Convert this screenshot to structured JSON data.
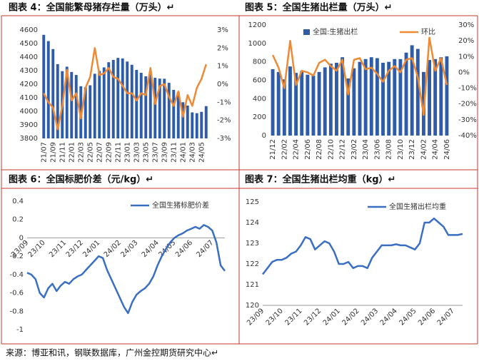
{
  "chart_data": [
    {
      "type": "bar",
      "title": "图表 4：全国能繁母猪存栏量（万头）↵",
      "categories": [
        "21/07",
        null,
        "21/09",
        null,
        "21/11",
        null,
        "22/01",
        null,
        "22/03",
        null,
        "22/05",
        null,
        "22/07",
        null,
        "22/09",
        null,
        "22/11",
        null,
        "23/01",
        null,
        "23/03",
        null,
        "23/05",
        null,
        "23/07",
        null,
        "23/09",
        null,
        "23/11",
        null,
        "24/01",
        null,
        "24/03",
        null,
        "24/05",
        null
      ],
      "series": [
        {
          "type": "bar",
          "color": "#2e5ca8",
          "values": [
            4564,
            4518,
            4459,
            4348,
            4296,
            4329,
            4290,
            4268,
            4185,
            4177,
            4192,
            4277,
            4298,
            4324,
            4362,
            4379,
            4394,
            4390,
            4367,
            4343,
            4305,
            4284,
            4258,
            4296,
            4247,
            4241,
            4240,
            4210,
            4158,
            4142,
            4067,
            4042,
            3992,
            3986,
            3996,
            4038
          ]
        },
        {
          "type": "line",
          "axis": "y2",
          "color": "#ee8a35",
          "values": [
            -0.5,
            -1.0,
            -1.3,
            -2.5,
            -1.2,
            0.8,
            -0.9,
            -0.5,
            -1.9,
            -0.2,
            0.4,
            2,
            0.5,
            0.6,
            0.9,
            0.4,
            0.3,
            -0.1,
            -0.5,
            -0.5,
            -0.9,
            -0.5,
            -0.6,
            0.9,
            -1.1,
            -0.1,
            0,
            -0.7,
            -1.2,
            -0.4,
            -1.8,
            -0.6,
            -1.2,
            -0.2,
            0.3,
            1.1
          ]
        }
      ],
      "ylim": [
        3800,
        4600
      ],
      "yticks": [
        3800,
        3900,
        4000,
        4100,
        4200,
        4300,
        4400,
        4500,
        4600
      ],
      "y2lim": [
        -3,
        3
      ],
      "y2ticks": [
        {
          "value": -3,
          "label": "-3%"
        },
        {
          "value": -2,
          "label": "-2%"
        },
        {
          "value": -1,
          "label": "-1%"
        },
        {
          "value": 0,
          "label": "0%"
        },
        {
          "value": 1,
          "label": "1%"
        },
        {
          "value": 2,
          "label": "2%"
        },
        {
          "value": 3,
          "label": "3%"
        }
      ]
    },
    {
      "type": "bar",
      "title": "图表 5：全国生猪出栏量（万头）↵",
      "categories": [
        "21/12",
        null,
        "22/02",
        null,
        "22/04",
        null,
        "22/06",
        null,
        "22/08",
        null,
        "22/10",
        null,
        "22/12",
        null,
        "23/02",
        null,
        "23/04",
        null,
        "23/06",
        null,
        "23/08",
        null,
        "23/10",
        null,
        "23/12",
        null,
        "24/02",
        null,
        "24/04",
        null,
        "24/06"
      ],
      "series": [
        {
          "name": "全国:生猪出栏",
          "type": "bar",
          "color": "#2e5ca8",
          "values": [
            720,
            690,
            610,
            750,
            680,
            700,
            660,
            650,
            690,
            740,
            780,
            790,
            850,
            620,
            730,
            800,
            830,
            850,
            840,
            790,
            800,
            830,
            830,
            900,
            980,
            940,
            690,
            820,
            830,
            850,
            860
          ]
        },
        {
          "name": "环比",
          "type": "line",
          "axis": "y2",
          "color": "#ee8a35",
          "values": [
            11,
            3,
            -10,
            20,
            -8,
            1,
            0,
            -2,
            6,
            8,
            4,
            1,
            8,
            -14,
            8,
            9,
            2,
            3,
            -1,
            -6,
            1,
            4,
            0,
            8,
            9,
            -3,
            -27,
            22,
            1,
            9,
            -8
          ]
        }
      ],
      "ylim": [
        0,
        1200
      ],
      "yticks": [
        0,
        200,
        400,
        600,
        800,
        1000,
        1200
      ],
      "y2lim": [
        -40,
        30
      ],
      "y2ticks": [
        {
          "value": -40,
          "label": "-40%"
        },
        {
          "value": -30,
          "label": "-30%"
        },
        {
          "value": -20,
          "label": "-20%"
        },
        {
          "value": -10,
          "label": "-10%"
        },
        {
          "value": 0,
          "label": "0%"
        },
        {
          "value": 10,
          "label": "10%"
        },
        {
          "value": 20,
          "label": "20%"
        },
        {
          "value": 30,
          "label": "30%"
        }
      ]
    },
    {
      "type": "line",
      "title": "图表 6：全国标肥价差（元/kg）↵",
      "categories": [
        "23/09",
        null,
        null,
        null,
        "23/10",
        null,
        null,
        null,
        null,
        "23/11",
        null,
        null,
        null,
        "23/12",
        null,
        null,
        null,
        "24/01",
        null,
        null,
        null,
        null,
        "24/02",
        null,
        null,
        null,
        "24/03",
        null,
        null,
        null,
        null,
        "24/04",
        null,
        null,
        null,
        "24/05",
        null,
        null,
        null,
        "24/06",
        null,
        null,
        null,
        null,
        "24/07",
        null,
        null,
        null
      ],
      "series": [
        {
          "name": "全国生猪标肥价差",
          "color": "#3a6fc4",
          "values": [
            -0.38,
            -0.4,
            -0.45,
            -0.6,
            -0.65,
            -0.55,
            -0.5,
            -0.58,
            -0.52,
            -0.48,
            -0.5,
            -0.45,
            -0.42,
            -0.4,
            -0.35,
            -0.3,
            -0.25,
            -0.2,
            -0.22,
            -0.35,
            -0.45,
            -0.55,
            -0.65,
            -0.75,
            -0.82,
            -0.7,
            -0.62,
            -0.58,
            -0.55,
            -0.5,
            -0.42,
            -0.3,
            -0.2,
            -0.12,
            -0.05,
            0,
            0.03,
            0.05,
            0.08,
            0.1,
            0.12,
            0.1,
            0.14,
            0.12,
            0.08,
            -0.05,
            -0.3,
            -0.36
          ]
        }
      ],
      "ylim": [
        -1,
        0.4
      ],
      "yticks": [
        -1,
        -0.8,
        -0.6,
        -0.4,
        -0.2,
        0,
        0.2,
        0.4
      ]
    },
    {
      "type": "line",
      "title": "图表 7：全国生猪出栏均重（kg）↵",
      "categories": [
        "23/09",
        null,
        null,
        null,
        "23/10",
        null,
        null,
        null,
        "23/11",
        null,
        null,
        null,
        "23/12",
        null,
        null,
        null,
        "24/01",
        null,
        null,
        null,
        "24/02",
        null,
        null,
        null,
        "24/03",
        null,
        null,
        null,
        "24/04",
        null,
        null,
        null,
        "24/05",
        null,
        null,
        null,
        "24/06",
        null,
        null,
        null,
        "24/07",
        null,
        null
      ],
      "series": [
        {
          "name": "全国生猪出栏均重",
          "color": "#3a6fc4",
          "values": [
            121.5,
            121.8,
            122.1,
            122.2,
            122.2,
            122.3,
            122.5,
            122.6,
            122.9,
            123.3,
            123.2,
            122.7,
            122.9,
            123.1,
            123.0,
            122.6,
            122.0,
            122.0,
            122.1,
            121.8,
            121.9,
            121.9,
            121.8,
            122.3,
            122.6,
            122.9,
            122.9,
            122.9,
            122.95,
            122.9,
            122.9,
            122.8,
            122.7,
            123.0,
            124.0,
            124.0,
            124.2,
            124.0,
            123.8,
            123.4,
            123.4,
            123.4,
            123.45
          ]
        }
      ],
      "ylim": [
        120,
        125
      ],
      "yticks": [
        120,
        121,
        122,
        123,
        124,
        125
      ]
    }
  ],
  "source": "来源：博亚和讯，钢联数据库，广州金控期货研究中心↵"
}
